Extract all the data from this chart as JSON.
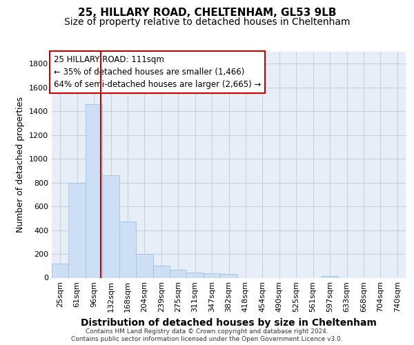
{
  "title1": "25, HILLARY ROAD, CHELTENHAM, GL53 9LB",
  "title2": "Size of property relative to detached houses in Cheltenham",
  "xlabel": "Distribution of detached houses by size in Cheltenham",
  "ylabel": "Number of detached properties",
  "footer1": "Contains HM Land Registry data © Crown copyright and database right 2024.",
  "footer2": "Contains public sector information licensed under the Open Government Licence v3.0.",
  "bin_labels": [
    "25sqm",
    "61sqm",
    "96sqm",
    "132sqm",
    "168sqm",
    "204sqm",
    "239sqm",
    "275sqm",
    "311sqm",
    "347sqm",
    "382sqm",
    "418sqm",
    "454sqm",
    "490sqm",
    "525sqm",
    "561sqm",
    "597sqm",
    "633sqm",
    "668sqm",
    "704sqm",
    "740sqm"
  ],
  "bar_values": [
    120,
    795,
    1460,
    860,
    470,
    200,
    100,
    65,
    45,
    35,
    30,
    0,
    0,
    0,
    0,
    0,
    15,
    0,
    0,
    0,
    0
  ],
  "bar_color": "#ccdff5",
  "bar_edge_color": "#a0c0e0",
  "red_line_x": 2.42,
  "red_line_color": "#cc0000",
  "annotation_line1": "25 HILLARY ROAD: 111sqm",
  "annotation_line2": "← 35% of detached houses are smaller (1,466)",
  "annotation_line3": "64% of semi-detached houses are larger (2,665) →",
  "ylim": [
    0,
    1900
  ],
  "yticks": [
    0,
    200,
    400,
    600,
    800,
    1000,
    1200,
    1400,
    1600,
    1800
  ],
  "grid_color": "#c8d0e0",
  "bg_color": "#e8eef8",
  "title1_fontsize": 11,
  "title2_fontsize": 10,
  "xlabel_fontsize": 10,
  "ylabel_fontsize": 9,
  "tick_fontsize": 8,
  "footer_fontsize": 6.5
}
